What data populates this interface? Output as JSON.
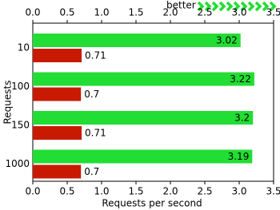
{
  "chart_data": {
    "type": "bar",
    "orientation": "horizontal",
    "annotation": "better",
    "xlabel": "Requests per second",
    "ylabel": "Requests",
    "categories": [
      "10",
      "100",
      "150",
      "1000"
    ],
    "series": [
      {
        "color": "#22dd33",
        "values": [
          3.02,
          3.22,
          3.2,
          3.19
        ]
      },
      {
        "color": "#c81a00",
        "values": [
          0.71,
          0.7,
          0.71,
          0.7
        ]
      }
    ],
    "xlim": [
      0,
      3.5
    ],
    "xticks": [
      {
        "value": 0,
        "label": "0.0"
      },
      0.5,
      {
        "value": 1,
        "label": "1.0"
      },
      1.5,
      {
        "value": 2,
        "label": "2.0"
      },
      2.5,
      {
        "value": 3,
        "label": "3.0"
      },
      3.5
    ],
    "grid": false
  }
}
